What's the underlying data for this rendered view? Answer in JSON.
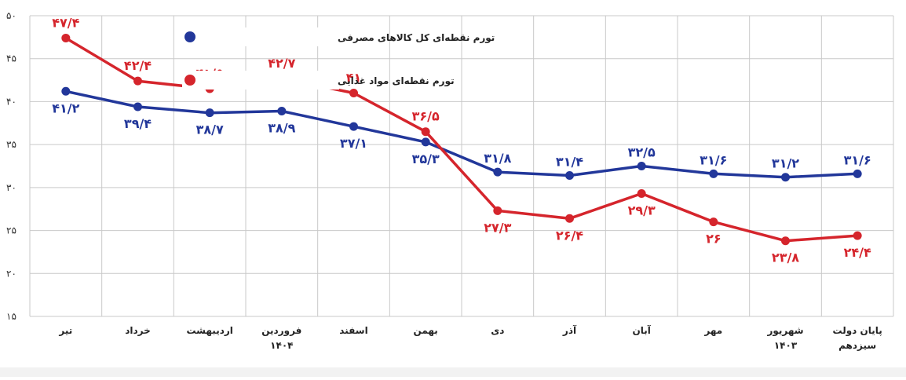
{
  "chart_data": {
    "type": "line",
    "title": "",
    "xlabel": "",
    "ylabel": "",
    "ylim": [
      15,
      50
    ],
    "yticks": [
      "۱۵",
      "۲۰",
      "۲۵",
      "۳۰",
      "۳۵",
      "۴۰",
      "۴۵",
      "۵۰"
    ],
    "grid": true,
    "legend_position": "top-left",
    "categories": [
      {
        "label": "پایان دولت",
        "sub": "سیزدهم"
      },
      {
        "label": "شهریور",
        "sub": "۱۴۰۳"
      },
      {
        "label": "مهر",
        "sub": ""
      },
      {
        "label": "آبان",
        "sub": ""
      },
      {
        "label": "آذر",
        "sub": ""
      },
      {
        "label": "دی",
        "sub": ""
      },
      {
        "label": "بهمن",
        "sub": ""
      },
      {
        "label": "اسفند",
        "sub": ""
      },
      {
        "label": "فروردین",
        "sub": "۱۴۰۴"
      },
      {
        "label": "اردیبهشت",
        "sub": ""
      },
      {
        "label": "خرداد",
        "sub": ""
      },
      {
        "label": "تیر",
        "sub": ""
      }
    ],
    "series": [
      {
        "name": "تورم نقطه‌ای کل کالاهای مصرفی",
        "color": "#22379a",
        "values": [
          31.6,
          31.2,
          31.6,
          32.5,
          31.4,
          31.8,
          35.3,
          37.1,
          38.9,
          38.7,
          39.4,
          41.2
        ],
        "labels": [
          "۳۱/۶",
          "۳۱/۲",
          "۳۱/۶",
          "۳۲/۵",
          "۳۱/۴",
          "۳۱/۸",
          "۳۵/۳",
          "۳۷/۱",
          "۳۸/۹",
          "۳۸/۷",
          "۳۹/۴",
          "۴۱/۲"
        ]
      },
      {
        "name": "تورم نقطه‌ای مواد غذایی",
        "color": "#d5252c",
        "values": [
          24.4,
          23.8,
          26,
          29.3,
          26.4,
          27.3,
          36.5,
          41,
          42.7,
          41.5,
          42.4,
          47.4
        ],
        "labels": [
          "۲۴/۴",
          "۲۳/۸",
          "۲۶",
          "۲۹/۳",
          "۲۶/۴",
          "۲۷/۳",
          "۳۶/۵",
          "۴۱",
          "۴۲/۷",
          "۴۱/۵",
          "۴۲/۴",
          "۴۷/۴"
        ]
      }
    ]
  }
}
